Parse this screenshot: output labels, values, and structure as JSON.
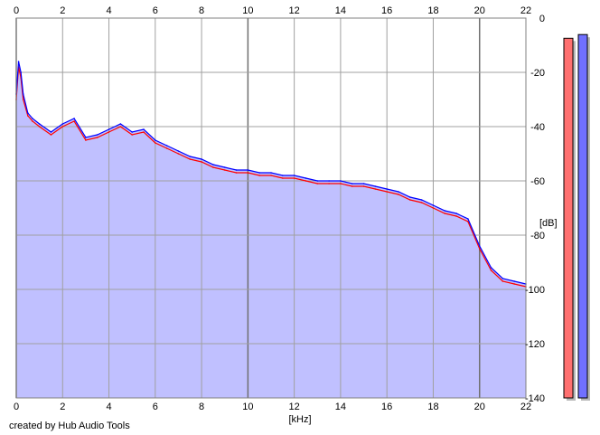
{
  "credit": "created by Hub Audio Tools",
  "chart_data": {
    "type": "area",
    "xlabel": "[kHz]",
    "ylabel": "[dB]",
    "xlim": [
      0,
      22
    ],
    "ylim": [
      -140,
      0
    ],
    "x_ticks": [
      0,
      2,
      4,
      6,
      8,
      10,
      12,
      14,
      16,
      18,
      20,
      22
    ],
    "x_tick_labels": [
      "0",
      "2",
      "4",
      "6",
      "8",
      "10",
      "12",
      "14",
      "16",
      "18",
      "20",
      "22"
    ],
    "y_ticks": [
      0,
      -20,
      -40,
      -60,
      -80,
      -100,
      -120,
      -140
    ],
    "y_tick_labels": [
      "0",
      "-20",
      "-40",
      "-60",
      "-80",
      "-100",
      "-120",
      "-140"
    ],
    "grid": true,
    "fill_color": "#c0c0ff",
    "series": [
      {
        "color": "#ff0000",
        "x": [
          0,
          0.1,
          0.2,
          0.3,
          0.5,
          0.7,
          1,
          1.5,
          2,
          2.5,
          3,
          3.5,
          4,
          4.5,
          5,
          5.5,
          6,
          6.5,
          7,
          7.5,
          8,
          8.5,
          9,
          9.5,
          10,
          10.5,
          11,
          11.5,
          12,
          12.5,
          13,
          13.5,
          14,
          14.5,
          15,
          15.5,
          16,
          16.5,
          17,
          17.5,
          18,
          18.5,
          19,
          19.5,
          20,
          20.5,
          21,
          21.5,
          22
        ],
        "y": [
          -30,
          -18,
          -22,
          -30,
          -36,
          -38,
          -40,
          -43,
          -40,
          -38,
          -45,
          -44,
          -42,
          -40,
          -43,
          -42,
          -46,
          -48,
          -50,
          -52,
          -53,
          -55,
          -56,
          -57,
          -57,
          -58,
          -58,
          -59,
          -59,
          -60,
          -61,
          -61,
          -61,
          -62,
          -62,
          -63,
          -64,
          -65,
          -67,
          -68,
          -70,
          -72,
          -73,
          -75,
          -85,
          -93,
          -97,
          -98,
          -99
        ]
      },
      {
        "color": "#0000ff",
        "x": [
          0,
          0.1,
          0.2,
          0.3,
          0.5,
          0.7,
          1,
          1.5,
          2,
          2.5,
          3,
          3.5,
          4,
          4.5,
          5,
          5.5,
          6,
          6.5,
          7,
          7.5,
          8,
          8.5,
          9,
          9.5,
          10,
          10.5,
          11,
          11.5,
          12,
          12.5,
          13,
          13.5,
          14,
          14.5,
          15,
          15.5,
          16,
          16.5,
          17,
          17.5,
          18,
          18.5,
          19,
          19.5,
          20,
          20.5,
          21,
          21.5,
          22
        ],
        "y": [
          -28,
          -16,
          -20,
          -28,
          -35,
          -37,
          -39,
          -42,
          -39,
          -37,
          -44,
          -43,
          -41,
          -39,
          -42,
          -41,
          -45,
          -47,
          -49,
          -51,
          -52,
          -54,
          -55,
          -56,
          -56,
          -57,
          -57,
          -58,
          -58,
          -59,
          -60,
          -60,
          -60,
          -61,
          -61,
          -62,
          -63,
          -64,
          -66,
          -67,
          -69,
          -71,
          -72,
          -74,
          -84,
          -92,
          -96,
          -97,
          -98
        ]
      }
    ],
    "meters": [
      {
        "color": "#ff7070",
        "level": 0.97
      },
      {
        "color": "#7070ff",
        "level": 0.98
      }
    ]
  }
}
